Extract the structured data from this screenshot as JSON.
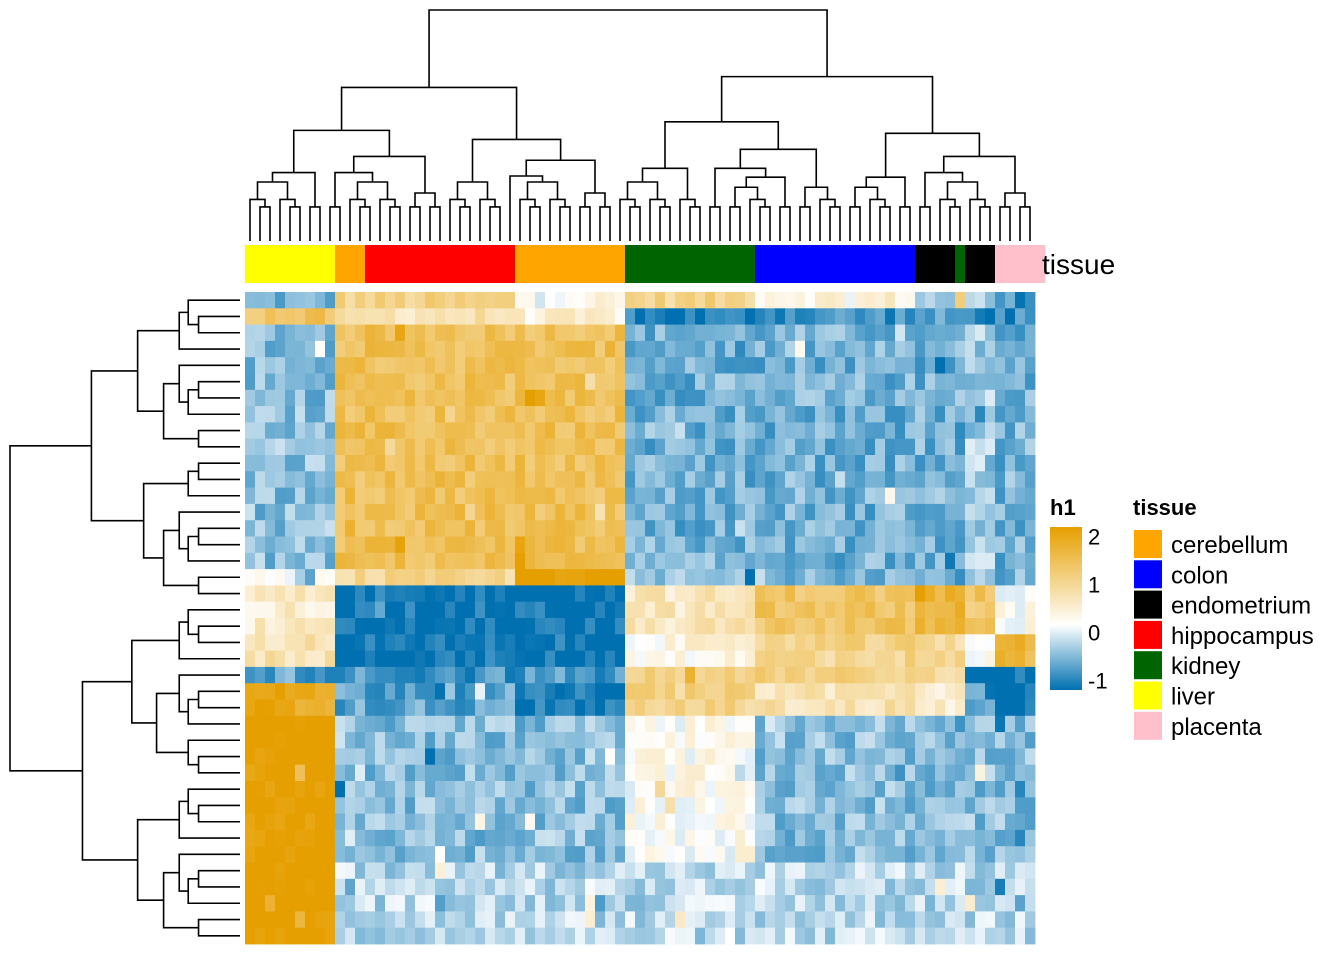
{
  "chart_data": {
    "type": "heatmap",
    "rows": 40,
    "columns": 79,
    "annotation": {
      "name": "tissue",
      "column_groups": [
        {
          "tissue": "liver",
          "count": 9
        },
        {
          "tissue": "cerebellum",
          "count": 3
        },
        {
          "tissue": "hippocampus",
          "count": 15
        },
        {
          "tissue": "cerebellum",
          "count": 11
        },
        {
          "tissue": "kidney",
          "count": 13
        },
        {
          "tissue": "colon",
          "count": 16
        },
        {
          "tissue": "endometrium",
          "count": 4
        },
        {
          "tissue": "kidney",
          "count": 1
        },
        {
          "tissue": "endometrium",
          "count": 3
        },
        {
          "tissue": "placenta",
          "count": 5
        }
      ]
    },
    "color_scale": {
      "name": "h1",
      "ticks": [
        2,
        1,
        0,
        -1
      ],
      "range": [
        -1.2,
        2.2
      ],
      "low_color": "#0070B0",
      "mid_color": "#FFFFFF",
      "high_color": "#E69F00"
    },
    "legend": {
      "title": "tissue",
      "items": [
        {
          "label": "cerebellum",
          "color": "#FFA500"
        },
        {
          "label": "colon",
          "color": "#0000FF"
        },
        {
          "label": "endometrium",
          "color": "#000000"
        },
        {
          "label": "hippocampus",
          "color": "#FF0000"
        },
        {
          "label": "kidney",
          "color": "#006400"
        },
        {
          "label": "liver",
          "color": "#FFFF00"
        },
        {
          "label": "placenta",
          "color": "#FFC0CB"
        }
      ]
    },
    "row_block_means": [
      [
        -0.6,
        0.9,
        0.9,
        0.2,
        0.9,
        0.3,
        -0.4,
        1.0,
        -0.4,
        -0.8
      ],
      [
        1.2,
        0.5,
        0.6,
        0.3,
        -1.0,
        -0.8,
        -0.8,
        -0.8,
        -0.9,
        -0.9
      ],
      [
        -0.5,
        1.3,
        1.3,
        1.3,
        -0.6,
        -0.6,
        -0.6,
        -0.6,
        -0.4,
        -0.6
      ],
      [
        -0.5,
        1.3,
        1.3,
        1.3,
        -0.6,
        -0.6,
        -0.6,
        -0.6,
        -0.4,
        -0.6
      ],
      [
        -0.5,
        1.3,
        1.3,
        1.3,
        -0.6,
        -0.6,
        -0.6,
        -0.6,
        -0.4,
        -0.6
      ],
      [
        -0.5,
        1.3,
        1.3,
        1.3,
        -0.6,
        -0.6,
        -0.6,
        -0.6,
        -0.4,
        -0.6
      ],
      [
        -0.5,
        1.3,
        1.3,
        1.3,
        -0.6,
        -0.6,
        -0.6,
        -0.6,
        -0.4,
        -0.6
      ],
      [
        -0.5,
        1.3,
        1.3,
        1.3,
        -0.6,
        -0.6,
        -0.6,
        -0.6,
        -0.4,
        -0.6
      ],
      [
        -0.5,
        1.3,
        1.3,
        1.3,
        -0.6,
        -0.6,
        -0.6,
        -0.6,
        -0.4,
        -0.6
      ],
      [
        -0.5,
        1.3,
        1.3,
        1.3,
        -0.6,
        -0.6,
        -0.6,
        -0.6,
        -0.4,
        -0.6
      ],
      [
        -0.5,
        1.3,
        1.3,
        1.3,
        -0.6,
        -0.6,
        -0.6,
        -0.6,
        -0.4,
        -0.6
      ],
      [
        -0.5,
        1.3,
        1.3,
        1.3,
        -0.6,
        -0.6,
        -0.6,
        -0.6,
        -0.4,
        -0.6
      ],
      [
        -0.5,
        1.3,
        1.3,
        1.3,
        -0.6,
        -0.6,
        -0.6,
        -0.6,
        -0.4,
        -0.6
      ],
      [
        -0.5,
        1.3,
        1.3,
        1.3,
        -0.6,
        -0.6,
        -0.6,
        -0.6,
        -0.4,
        -0.6
      ],
      [
        -0.5,
        1.3,
        1.3,
        1.3,
        -0.6,
        -0.6,
        -0.6,
        -0.6,
        -0.4,
        -0.6
      ],
      [
        -0.5,
        1.3,
        1.3,
        1.3,
        -0.6,
        -0.6,
        -0.6,
        -0.6,
        -0.4,
        -0.6
      ],
      [
        -0.5,
        1.3,
        1.3,
        1.3,
        -0.6,
        -0.6,
        -0.6,
        -0.6,
        -0.4,
        -0.6
      ],
      [
        -0.1,
        0.8,
        0.8,
        2.1,
        -0.5,
        -0.5,
        -0.6,
        -0.6,
        -0.5,
        -0.6
      ],
      [
        0.4,
        -1.1,
        -1.1,
        -1.1,
        0.5,
        1.2,
        1.5,
        1.5,
        1.2,
        0.1
      ],
      [
        0.4,
        -1.1,
        -1.1,
        -1.1,
        0.5,
        1.2,
        1.5,
        1.5,
        1.2,
        0.1
      ],
      [
        0.4,
        -1.1,
        -1.1,
        -1.1,
        0.5,
        1.2,
        1.5,
        1.5,
        1.2,
        0.1
      ],
      [
        0.6,
        -1.1,
        -1.1,
        -1.1,
        0.2,
        0.9,
        0.8,
        0.8,
        0.1,
        1.5
      ],
      [
        0.6,
        -1.1,
        -1.1,
        -1.1,
        0.2,
        0.9,
        0.8,
        0.8,
        0.1,
        1.5
      ],
      [
        -0.7,
        -0.8,
        -0.8,
        -0.8,
        0.9,
        1.0,
        0.8,
        0.8,
        -0.9,
        -1.1
      ],
      [
        1.8,
        -0.7,
        -0.7,
        -1.1,
        0.9,
        0.6,
        0.4,
        0.4,
        -0.8,
        -1.1
      ],
      [
        1.8,
        -0.7,
        -0.7,
        -1.1,
        0.9,
        0.6,
        0.4,
        0.4,
        -0.8,
        -1.1
      ],
      [
        2.1,
        -0.4,
        -0.5,
        -0.5,
        0.1,
        -0.5,
        -0.5,
        -0.5,
        -0.5,
        -0.5
      ],
      [
        2.1,
        -0.4,
        -0.5,
        -0.5,
        0.1,
        -0.5,
        -0.5,
        -0.5,
        -0.5,
        -0.5
      ],
      [
        2.1,
        -0.4,
        -0.5,
        -0.5,
        0.1,
        -0.5,
        -0.5,
        -0.5,
        -0.5,
        -0.5
      ],
      [
        2.1,
        -0.4,
        -0.5,
        -0.5,
        0.1,
        -0.5,
        -0.5,
        -0.5,
        -0.5,
        -0.5
      ],
      [
        2.1,
        -0.4,
        -0.5,
        -0.5,
        0.1,
        -0.5,
        -0.5,
        -0.5,
        -0.5,
        -0.5
      ],
      [
        2.1,
        -0.4,
        -0.5,
        -0.5,
        0.1,
        -0.5,
        -0.5,
        -0.5,
        -0.5,
        -0.5
      ],
      [
        2.1,
        -0.4,
        -0.5,
        -0.5,
        0.1,
        -0.5,
        -0.5,
        -0.5,
        -0.5,
        -0.5
      ],
      [
        2.1,
        -0.4,
        -0.5,
        -0.5,
        0.1,
        -0.5,
        -0.5,
        -0.5,
        -0.5,
        -0.5
      ],
      [
        2.1,
        -0.4,
        -0.5,
        -0.5,
        0.1,
        -0.5,
        -0.5,
        -0.5,
        -0.5,
        -0.5
      ],
      [
        2.1,
        -0.3,
        -0.3,
        -0.3,
        -0.3,
        -0.3,
        -0.3,
        -0.3,
        -0.3,
        -0.3
      ],
      [
        2.1,
        -0.3,
        -0.3,
        -0.3,
        -0.3,
        -0.3,
        -0.3,
        -0.3,
        -0.3,
        -0.3
      ],
      [
        2.1,
        -0.3,
        -0.3,
        -0.3,
        -0.3,
        -0.3,
        -0.3,
        -0.3,
        -0.3,
        -0.3
      ],
      [
        2.1,
        -0.3,
        -0.3,
        -0.3,
        -0.3,
        -0.3,
        -0.3,
        -0.3,
        -0.3,
        -0.3
      ],
      [
        2.1,
        -0.3,
        -0.3,
        -0.3,
        -0.3,
        -0.3,
        -0.3,
        -0.3,
        -0.3,
        -0.3
      ]
    ]
  }
}
